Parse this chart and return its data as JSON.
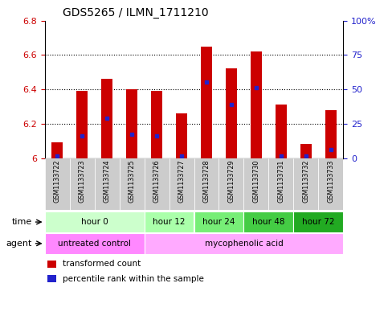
{
  "title": "GDS5265 / ILMN_1711210",
  "samples": [
    "GSM1133722",
    "GSM1133723",
    "GSM1133724",
    "GSM1133725",
    "GSM1133726",
    "GSM1133727",
    "GSM1133728",
    "GSM1133729",
    "GSM1133730",
    "GSM1133731",
    "GSM1133732",
    "GSM1133733"
  ],
  "bar_tops": [
    6.09,
    6.39,
    6.46,
    6.4,
    6.39,
    6.26,
    6.65,
    6.52,
    6.62,
    6.31,
    6.08,
    6.28
  ],
  "bar_base": 6.0,
  "percentile_values": [
    6.01,
    6.13,
    6.23,
    6.14,
    6.13,
    6.01,
    6.44,
    6.31,
    6.41,
    6.01,
    6.01,
    6.05
  ],
  "bar_color": "#cc0000",
  "percentile_color": "#2222cc",
  "ylim": [
    6.0,
    6.8
  ],
  "yticks_left": [
    6.0,
    6.2,
    6.4,
    6.6,
    6.8
  ],
  "ytick_labels_left": [
    "6",
    "6.2",
    "6.4",
    "6.6",
    "6.8"
  ],
  "yticks_right_pct": [
    0,
    25,
    50,
    75,
    100
  ],
  "ytick_labels_right": [
    "0",
    "25",
    "50",
    "75",
    "100%"
  ],
  "time_groups": [
    {
      "label": "hour 0",
      "start": 0,
      "end": 4,
      "color": "#ccffcc"
    },
    {
      "label": "hour 12",
      "start": 4,
      "end": 6,
      "color": "#aaffaa"
    },
    {
      "label": "hour 24",
      "start": 6,
      "end": 8,
      "color": "#77ee77"
    },
    {
      "label": "hour 48",
      "start": 8,
      "end": 10,
      "color": "#44cc44"
    },
    {
      "label": "hour 72",
      "start": 10,
      "end": 12,
      "color": "#22aa22"
    }
  ],
  "agent_groups": [
    {
      "label": "untreated control",
      "start": 0,
      "end": 4,
      "color": "#ff88ff"
    },
    {
      "label": "mycophenolic acid",
      "start": 4,
      "end": 12,
      "color": "#ffaaff"
    }
  ],
  "legend_items": [
    {
      "label": "transformed count",
      "color": "#cc0000",
      "marker": "s"
    },
    {
      "label": "percentile rank within the sample",
      "color": "#2222cc",
      "marker": "s"
    }
  ],
  "left_ycolor": "#cc0000",
  "right_ycolor": "#2222cc",
  "bar_width": 0.45,
  "bg_plot": "#ffffff",
  "bg_xtick": "#cccccc",
  "spine_color": "#000000",
  "grid_color": "#000000",
  "fig_bg": "#ffffff"
}
